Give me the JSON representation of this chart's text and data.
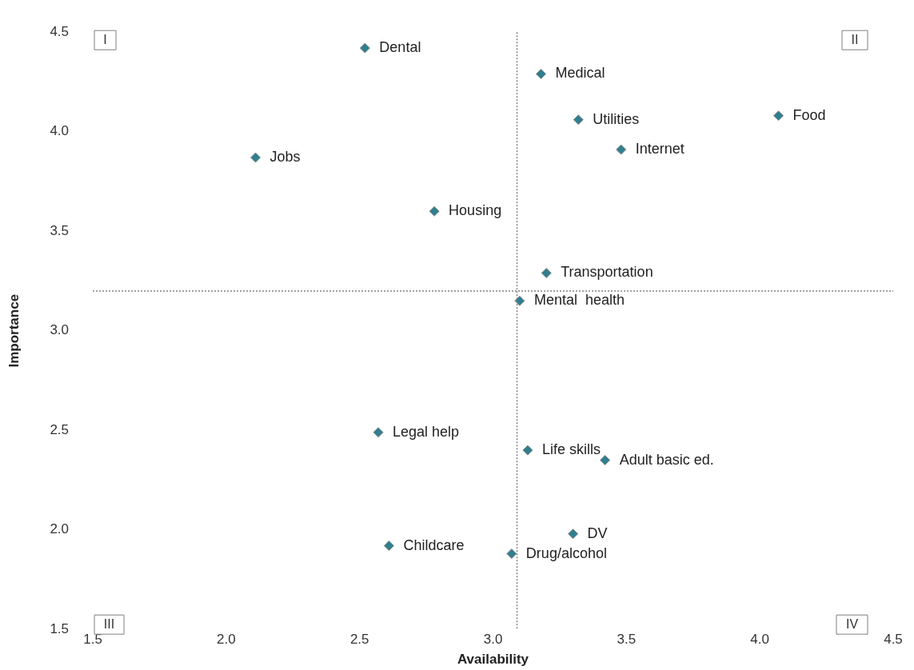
{
  "chart_data": {
    "type": "scatter",
    "xlabel": "Availability",
    "ylabel": "Importance",
    "marker": "diamond",
    "grid": false,
    "legend": false,
    "xlim": [
      1.5,
      4.5
    ],
    "ylim": [
      1.5,
      4.5
    ],
    "xticks": [
      1.5,
      {
        "value": 2,
        "label": "2.0"
      },
      2.5,
      {
        "value": 3,
        "label": "3.0"
      },
      3.5,
      {
        "value": 4,
        "label": "4.0"
      },
      4.5
    ],
    "yticks": [
      1.5,
      {
        "value": 2,
        "label": "2.0"
      },
      2.5,
      {
        "value": 3,
        "label": "3.0"
      },
      3.5,
      {
        "value": 4,
        "label": "4.0"
      },
      4.5
    ],
    "series": [
      {
        "color": "#2f7f8f",
        "x": [
          2.52,
          3.18,
          3.32,
          4.07,
          3.48,
          2.11,
          2.78,
          3.2,
          3.1,
          2.57,
          3.13,
          3.42,
          3.3,
          2.61,
          3.07
        ],
        "values": [
          4.42,
          4.29,
          4.06,
          4.08,
          3.91,
          3.87,
          3.6,
          3.29,
          3.15,
          2.49,
          2.4,
          2.35,
          1.98,
          1.92,
          1.88
        ]
      }
    ],
    "ref_lines": [
      {
        "axis": "x",
        "value": 3.09,
        "color": "#808080",
        "line_style": "dotted"
      },
      {
        "axis": "y",
        "value": 3.2,
        "color": "#808080",
        "line_style": "dotted"
      }
    ],
    "annotations": [
      {
        "text": "Dental",
        "x": 2.52,
        "y": 4.42
      },
      {
        "text": "Medical",
        "x": 3.18,
        "y": 4.29
      },
      {
        "text": "Utilities",
        "x": 3.32,
        "y": 4.06
      },
      {
        "text": "Food",
        "x": 4.07,
        "y": 4.08
      },
      {
        "text": "Internet",
        "x": 3.48,
        "y": 3.91
      },
      {
        "text": "Jobs",
        "x": 2.11,
        "y": 3.87
      },
      {
        "text": "Housing",
        "x": 2.78,
        "y": 3.6
      },
      {
        "text": "Transportation",
        "x": 3.2,
        "y": 3.29
      },
      {
        "text": "Mental  health",
        "x": 3.1,
        "y": 3.15
      },
      {
        "text": "Legal help",
        "x": 2.57,
        "y": 2.49
      },
      {
        "text": "Life skills",
        "x": 3.13,
        "y": 2.4
      },
      {
        "text": "Adult basic ed.",
        "x": 3.42,
        "y": 2.35
      },
      {
        "text": "DV",
        "x": 3.3,
        "y": 1.98
      },
      {
        "text": "Childcare",
        "x": 2.61,
        "y": 1.92
      },
      {
        "text": "Drug/alcohol",
        "x": 3.07,
        "y": 1.88
      },
      "I",
      "II",
      "III",
      "IV"
    ]
  }
}
